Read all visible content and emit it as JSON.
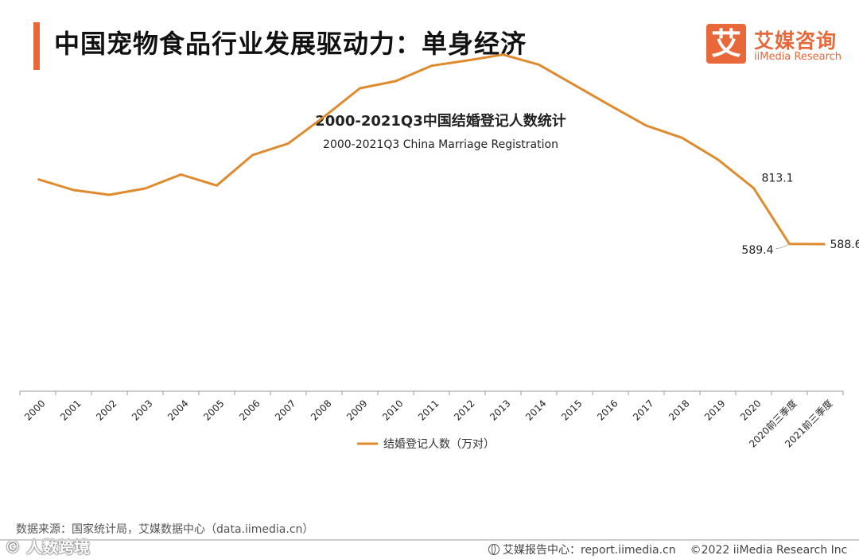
{
  "header": {
    "title": "中国宠物食品行业发展驱动力：单身经济",
    "logo_mark": "艾",
    "logo_cn": "艾媒咨询",
    "logo_en": "iiMedia Research"
  },
  "colors": {
    "accent": "#e8683a",
    "line": "#e08a2e"
  },
  "chart_data": {
    "type": "line",
    "title": "2000-2021Q3中国结婚登记人数统计",
    "subtitle": "2000-2021Q3 China Marriage Registration",
    "categories": [
      "2000",
      "2001",
      "2002",
      "2003",
      "2004",
      "2005",
      "2006",
      "2007",
      "2008",
      "2009",
      "2010",
      "2011",
      "2012",
      "2013",
      "2014",
      "2015",
      "2016",
      "2017",
      "2018",
      "2019",
      "2020",
      "2020前三季度",
      "2021前三季度"
    ],
    "series": [
      {
        "name": "结婚登记人数（万对）",
        "values": [
          848.5,
          805.0,
          786.0,
          811.4,
          867.2,
          823.1,
          945.0,
          991.4,
          1098.3,
          1212.4,
          1241.0,
          1302.4,
          1323.6,
          1346.9,
          1306.7,
          1224.7,
          1142.8,
          1063.1,
          1013.9,
          927.3,
          813.1,
          589.4,
          588.6
        ]
      }
    ],
    "annotations": [
      {
        "category": "2020",
        "label": "813.1"
      },
      {
        "category": "2020前三季度",
        "label": "589.4"
      },
      {
        "category": "2021前三季度",
        "label": "588.6"
      }
    ],
    "ylim": [
      0,
      1400
    ],
    "grid": false,
    "legend": "bottom-center",
    "xlabel": "",
    "ylabel": ""
  },
  "footer": {
    "source": "数据来源：国家统计局，艾媒数据中心（data.iimedia.cn）",
    "report_center": "艾媒报告中心：report.iimedia.cn",
    "copyright": "©2022  iiMedia Research  Inc",
    "watermark": "©  人数跨境"
  }
}
